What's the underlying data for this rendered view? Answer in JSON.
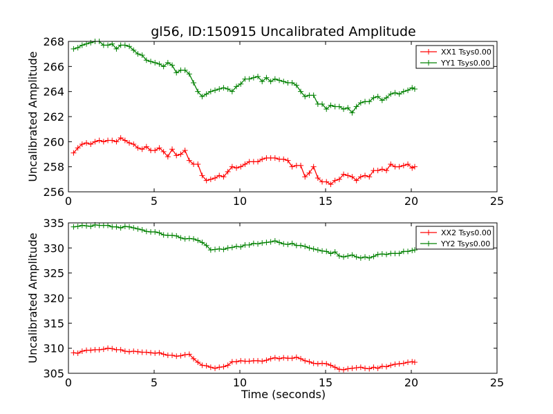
{
  "chart_data": [
    {
      "type": "line",
      "title": "gl56, ID:150915 Uncalibrated Amplitude",
      "xlabel": "",
      "ylabel": "Uncalibrated Amplitude",
      "xlim": [
        0,
        25
      ],
      "ylim": [
        256,
        268
      ],
      "xticks": [
        0,
        5,
        10,
        15,
        20,
        25
      ],
      "yticks": [
        256,
        258,
        260,
        262,
        264,
        266,
        268
      ],
      "legend_position": "top-right",
      "series": [
        {
          "name": "XX1 Tsys0.00",
          "color": "#ff0000",
          "x": [
            0.3,
            0.55,
            0.8,
            1.05,
            1.3,
            1.55,
            1.8,
            2.05,
            2.3,
            2.55,
            2.8,
            3.05,
            3.3,
            3.55,
            3.8,
            4.05,
            4.3,
            4.55,
            4.8,
            5.05,
            5.3,
            5.55,
            5.8,
            6.05,
            6.3,
            6.55,
            6.8,
            7.05,
            7.3,
            7.55,
            7.8,
            8.05,
            8.3,
            8.55,
            8.8,
            9.05,
            9.3,
            9.55,
            9.8,
            10.05,
            10.3,
            10.55,
            10.8,
            11.05,
            11.3,
            11.55,
            11.8,
            12.05,
            12.3,
            12.55,
            12.8,
            13.05,
            13.3,
            13.55,
            13.8,
            14.05,
            14.3,
            14.55,
            14.8,
            15.05,
            15.3,
            15.55,
            15.8,
            16.05,
            16.3,
            16.55,
            16.8,
            17.05,
            17.3,
            17.55,
            17.8,
            18.05,
            18.3,
            18.55,
            18.8,
            19.05,
            19.3,
            19.55,
            19.8,
            20.05,
            20.2
          ],
          "values": [
            259.1,
            259.5,
            259.8,
            259.9,
            259.8,
            260.0,
            260.1,
            260.0,
            260.1,
            260.1,
            260.0,
            260.3,
            260.1,
            259.9,
            259.8,
            259.5,
            259.4,
            259.6,
            259.3,
            259.3,
            259.5,
            259.2,
            258.8,
            259.4,
            258.9,
            259.0,
            259.3,
            258.5,
            258.2,
            258.2,
            257.3,
            256.9,
            257.0,
            257.1,
            257.3,
            257.2,
            257.6,
            258.0,
            257.9,
            258.0,
            258.2,
            258.4,
            258.4,
            258.4,
            258.6,
            258.7,
            258.7,
            258.7,
            258.6,
            258.6,
            258.5,
            258.0,
            258.1,
            258.1,
            257.2,
            257.5,
            258.0,
            257.1,
            256.8,
            256.8,
            256.6,
            256.9,
            257.0,
            257.4,
            257.3,
            257.2,
            256.9,
            257.2,
            257.3,
            257.2,
            257.7,
            257.7,
            257.8,
            257.7,
            258.2,
            258.0,
            258.0,
            258.1,
            258.2,
            257.9,
            258.0
          ]
        },
        {
          "name": "YY1 Tsys0.00",
          "color": "#008000",
          "x": [
            0.3,
            0.55,
            0.8,
            1.05,
            1.3,
            1.55,
            1.8,
            2.05,
            2.3,
            2.55,
            2.8,
            3.05,
            3.3,
            3.55,
            3.8,
            4.05,
            4.3,
            4.55,
            4.8,
            5.05,
            5.3,
            5.55,
            5.8,
            6.05,
            6.3,
            6.55,
            6.8,
            7.05,
            7.3,
            7.55,
            7.8,
            8.05,
            8.3,
            8.55,
            8.8,
            9.05,
            9.3,
            9.55,
            9.8,
            10.05,
            10.3,
            10.55,
            10.8,
            11.05,
            11.3,
            11.55,
            11.8,
            12.05,
            12.3,
            12.55,
            12.8,
            13.05,
            13.3,
            13.55,
            13.8,
            14.05,
            14.3,
            14.55,
            14.8,
            15.05,
            15.3,
            15.55,
            15.8,
            16.05,
            16.3,
            16.55,
            16.8,
            17.05,
            17.3,
            17.55,
            17.8,
            18.05,
            18.3,
            18.55,
            18.8,
            19.05,
            19.3,
            19.55,
            19.8,
            20.05,
            20.2
          ],
          "values": [
            267.4,
            267.5,
            267.7,
            267.8,
            267.9,
            268.0,
            268.0,
            267.7,
            267.7,
            267.8,
            267.4,
            267.7,
            267.7,
            267.6,
            267.3,
            267.0,
            266.9,
            266.5,
            266.4,
            266.3,
            266.2,
            266.0,
            266.3,
            266.1,
            265.5,
            265.7,
            265.7,
            265.4,
            264.7,
            264.0,
            263.6,
            263.8,
            264.0,
            264.1,
            264.2,
            264.3,
            264.2,
            264.0,
            264.4,
            264.6,
            265.0,
            265.0,
            265.1,
            265.2,
            264.8,
            265.1,
            264.8,
            265.0,
            264.9,
            264.8,
            264.7,
            264.7,
            264.5,
            264.0,
            263.6,
            263.7,
            263.7,
            263.0,
            263.0,
            262.6,
            262.9,
            262.8,
            262.8,
            262.6,
            262.7,
            262.3,
            262.8,
            263.1,
            263.2,
            263.2,
            263.5,
            263.6,
            263.3,
            263.5,
            263.8,
            263.9,
            263.8,
            264.0,
            264.1,
            264.3,
            264.2
          ]
        }
      ]
    },
    {
      "type": "line",
      "title": "",
      "xlabel": "Time (seconds)",
      "ylabel": "Uncalibrated Amplitude",
      "xlim": [
        0,
        25
      ],
      "ylim": [
        305,
        335
      ],
      "xticks": [
        0,
        5,
        10,
        15,
        20,
        25
      ],
      "yticks": [
        305,
        310,
        315,
        320,
        325,
        330,
        335
      ],
      "legend_position": "top-right",
      "series": [
        {
          "name": "XX2 Tsys0.00",
          "color": "#ff0000",
          "x": [
            0.3,
            0.55,
            0.8,
            1.05,
            1.3,
            1.55,
            1.8,
            2.05,
            2.3,
            2.55,
            2.8,
            3.05,
            3.3,
            3.55,
            3.8,
            4.05,
            4.3,
            4.55,
            4.8,
            5.05,
            5.3,
            5.55,
            5.8,
            6.05,
            6.3,
            6.55,
            6.8,
            7.05,
            7.3,
            7.55,
            7.8,
            8.05,
            8.3,
            8.55,
            8.8,
            9.05,
            9.3,
            9.55,
            9.8,
            10.05,
            10.3,
            10.55,
            10.8,
            11.05,
            11.3,
            11.55,
            11.8,
            12.05,
            12.3,
            12.55,
            12.8,
            13.05,
            13.3,
            13.55,
            13.8,
            14.05,
            14.3,
            14.55,
            14.8,
            15.05,
            15.3,
            15.55,
            15.8,
            16.05,
            16.3,
            16.55,
            16.8,
            17.05,
            17.3,
            17.55,
            17.8,
            18.05,
            18.3,
            18.55,
            18.8,
            19.05,
            19.3,
            19.55,
            19.8,
            20.05,
            20.2
          ],
          "values": [
            309.1,
            309.0,
            309.4,
            309.6,
            309.6,
            309.7,
            309.7,
            309.8,
            310.0,
            309.9,
            309.7,
            309.7,
            309.4,
            309.3,
            309.4,
            309.3,
            309.2,
            309.2,
            309.1,
            309.0,
            309.1,
            308.8,
            308.6,
            308.6,
            308.4,
            308.5,
            308.7,
            308.8,
            307.9,
            307.2,
            306.6,
            306.5,
            306.2,
            306.0,
            306.2,
            306.3,
            306.6,
            307.3,
            307.3,
            307.5,
            307.4,
            307.4,
            307.5,
            307.5,
            307.4,
            307.6,
            307.9,
            308.1,
            307.9,
            308.1,
            308.0,
            308.0,
            308.2,
            307.9,
            307.5,
            307.3,
            307.0,
            306.9,
            307.0,
            306.9,
            306.6,
            306.2,
            305.8,
            305.7,
            305.9,
            306.0,
            306.1,
            306.2,
            306.0,
            305.9,
            306.2,
            306.0,
            306.4,
            306.3,
            306.6,
            306.8,
            306.9,
            307.0,
            307.2,
            307.3,
            307.2
          ]
        },
        {
          "name": "YY2 Tsys0.00",
          "color": "#008000",
          "x": [
            0.3,
            0.55,
            0.8,
            1.05,
            1.3,
            1.55,
            1.8,
            2.05,
            2.3,
            2.55,
            2.8,
            3.05,
            3.3,
            3.55,
            3.8,
            4.05,
            4.3,
            4.55,
            4.8,
            5.05,
            5.3,
            5.55,
            5.8,
            6.05,
            6.3,
            6.55,
            6.8,
            7.05,
            7.3,
            7.55,
            7.8,
            8.05,
            8.3,
            8.55,
            8.8,
            9.05,
            9.3,
            9.55,
            9.8,
            10.05,
            10.3,
            10.55,
            10.8,
            11.05,
            11.3,
            11.55,
            11.8,
            12.05,
            12.3,
            12.55,
            12.8,
            13.05,
            13.3,
            13.55,
            13.8,
            14.05,
            14.3,
            14.55,
            14.8,
            15.05,
            15.3,
            15.55,
            15.8,
            16.05,
            16.3,
            16.55,
            16.8,
            17.05,
            17.3,
            17.55,
            17.8,
            18.05,
            18.3,
            18.55,
            18.8,
            19.05,
            19.3,
            19.55,
            19.8,
            20.05,
            20.2
          ],
          "values": [
            334.2,
            334.3,
            334.5,
            334.4,
            334.3,
            334.6,
            334.5,
            334.5,
            334.5,
            334.2,
            334.2,
            334.0,
            334.3,
            334.2,
            334.0,
            333.8,
            333.6,
            333.3,
            333.2,
            333.2,
            333.0,
            332.6,
            332.5,
            332.5,
            332.4,
            332.0,
            331.8,
            331.9,
            331.8,
            331.5,
            331.1,
            330.5,
            329.6,
            329.7,
            329.8,
            329.7,
            330.0,
            330.1,
            330.3,
            330.2,
            330.6,
            330.6,
            330.9,
            330.8,
            331.0,
            331.1,
            331.2,
            331.4,
            331.1,
            330.8,
            330.7,
            330.9,
            330.5,
            330.5,
            330.3,
            330.0,
            329.8,
            329.6,
            329.4,
            329.3,
            328.9,
            329.2,
            328.4,
            328.2,
            328.4,
            328.6,
            328.2,
            328.0,
            328.2,
            328.0,
            328.3,
            328.7,
            328.8,
            328.7,
            328.9,
            328.9,
            328.9,
            329.3,
            329.3,
            329.5,
            329.6
          ]
        }
      ]
    }
  ]
}
